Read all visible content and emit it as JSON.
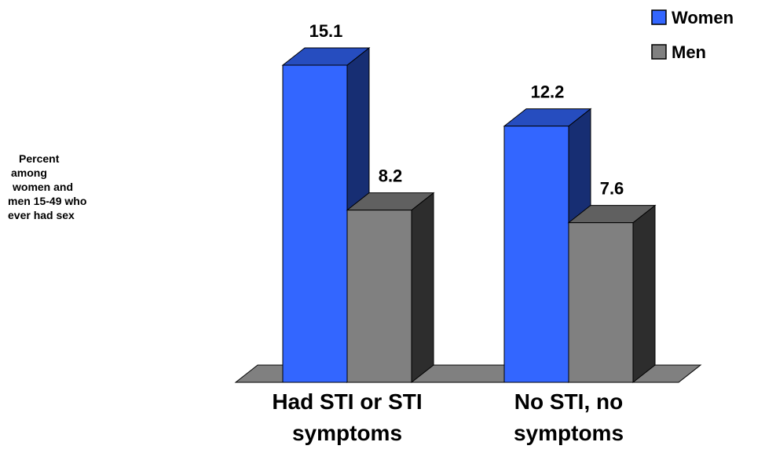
{
  "chart_data": {
    "type": "bar3d",
    "y_label_lines": [
      "Percent",
      "among",
      "women and",
      "men 15-49 who",
      "ever had sex"
    ],
    "categories": [
      "Had STI or STI symptoms",
      "No STI, no symptoms"
    ],
    "series": [
      {
        "name": "Women",
        "color": "#3366ff",
        "values": [
          15.1,
          12.2
        ]
      },
      {
        "name": "Men",
        "color": "#808080",
        "values": [
          8.2,
          7.6
        ]
      }
    ],
    "legend": "top-right"
  }
}
